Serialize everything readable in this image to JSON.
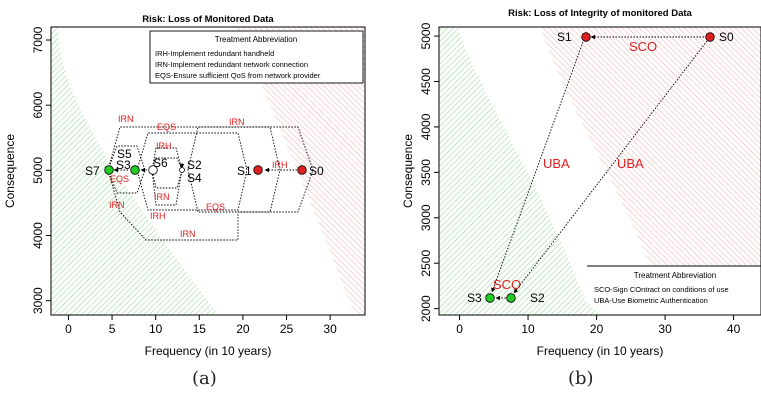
{
  "chart_data": [
    {
      "type": "scatter",
      "panel_label": "(a)",
      "title": "Risk: Loss of Monitored Data",
      "xlabel": "Frequency (in 10 years)",
      "ylabel": "Consequence",
      "xlim": [
        -2,
        34
      ],
      "ylim": [
        2780,
        7200
      ],
      "xticks": [
        0,
        5,
        10,
        15,
        20,
        25,
        30
      ],
      "yticks": [
        3000,
        4000,
        5000,
        6000,
        7000
      ],
      "points": [
        {
          "name": "S0",
          "x": 26.5,
          "y": 5000,
          "color": "#e02020"
        },
        {
          "name": "S1",
          "x": 21.5,
          "y": 5000,
          "color": "#e02020"
        },
        {
          "name": "S2",
          "x": 13.0,
          "y": 5000,
          "color": "#ffffff"
        },
        {
          "name": "S3",
          "x": 8.0,
          "y": 5000,
          "color": "#22cc22"
        },
        {
          "name": "S4",
          "x": 12.9,
          "y": 5000,
          "color": "#ffffff"
        },
        {
          "name": "S5",
          "x": 8.2,
          "y": 5000,
          "color": "#22cc22"
        },
        {
          "name": "S6",
          "x": 10.0,
          "y": 5000,
          "color": "#ffffff"
        },
        {
          "name": "S7",
          "x": 5.0,
          "y": 5000,
          "color": "#22cc22"
        }
      ],
      "treatments": [
        "IRN",
        "EQS",
        "IRH",
        "IRN",
        "IRH",
        "EQS",
        "IRN",
        "IRH",
        "EQS",
        "IRN",
        "IRN"
      ],
      "legend": {
        "title": "Treatment Abbreviation",
        "items": [
          "IRH-Implement redundant handheld",
          "IRN-Implement redundant network connection",
          "EQS-Ensure sufficient QoS from network provider"
        ]
      },
      "grid": false
    },
    {
      "type": "scatter",
      "panel_label": "(b)",
      "title": "Risk: Loss of Integrity of monitored Data",
      "xlabel": "Frequency (in 10 years)",
      "ylabel": "Consequence",
      "xlim": [
        -3,
        44
      ],
      "ylim": [
        1930,
        5100
      ],
      "xticks": [
        0,
        10,
        20,
        30,
        40
      ],
      "yticks": [
        2000,
        2500,
        3000,
        3500,
        4000,
        4500,
        5000
      ],
      "points": [
        {
          "name": "S0",
          "x": 36,
          "y": 5000,
          "color": "#e02020"
        },
        {
          "name": "S1",
          "x": 18,
          "y": 5000,
          "color": "#e02020"
        },
        {
          "name": "S2",
          "x": 7.2,
          "y": 2000,
          "color": "#22cc22"
        },
        {
          "name": "S3",
          "x": 4.3,
          "y": 2000,
          "color": "#22cc22"
        }
      ],
      "treatments": [
        "SCO",
        "SCO",
        "UBA",
        "UBA"
      ],
      "legend": {
        "title": "Treatment Abbreviation",
        "items": [
          "SCO-Sign COntract on conditions of use",
          "UBA-Use Biometric Authentication"
        ]
      },
      "grid": false
    }
  ]
}
